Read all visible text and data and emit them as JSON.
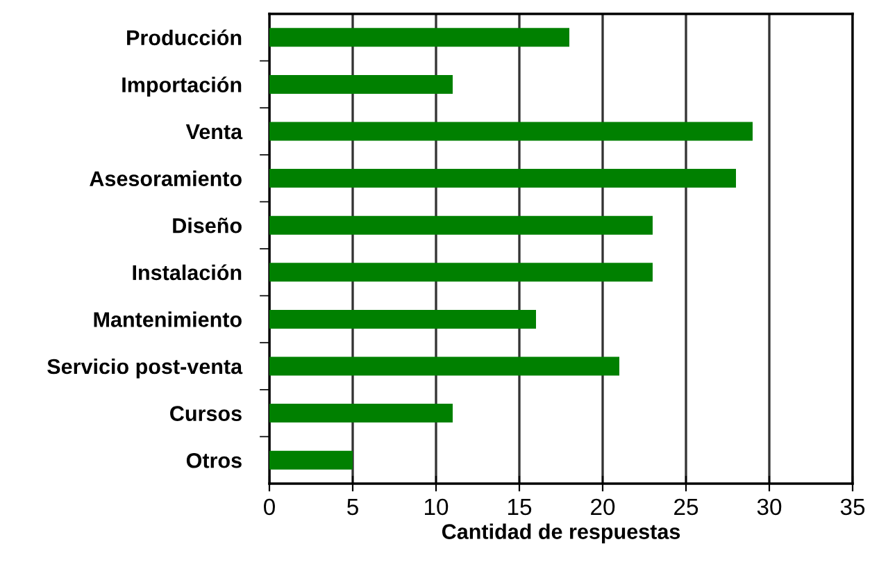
{
  "chart_data": {
    "type": "bar",
    "orientation": "horizontal",
    "xlabel": "Cantidad de respuestas",
    "categories": [
      "Producción",
      "Importación",
      "Venta",
      "Asesoramiento",
      "Diseño",
      "Instalación",
      "Mantenimiento",
      "Servicio post-venta",
      "Cursos",
      "Otros"
    ],
    "values": [
      18,
      11,
      29,
      28,
      23,
      23,
      16,
      21,
      11,
      5
    ],
    "color": "#008000",
    "xlim": [
      0,
      35
    ],
    "xticks": [
      0,
      5,
      10,
      15,
      20,
      25,
      30,
      35
    ],
    "grid": "x"
  }
}
